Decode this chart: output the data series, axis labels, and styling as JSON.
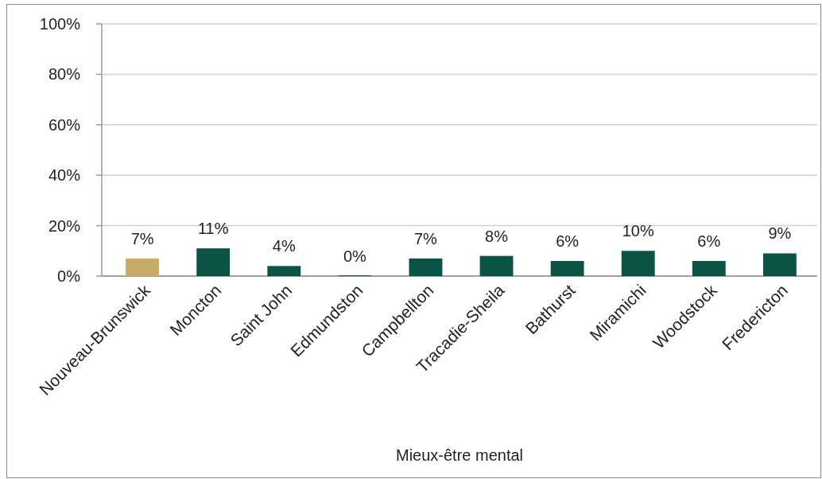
{
  "chart_data": {
    "type": "bar",
    "xlabel": "Mieux-être mental",
    "categories": [
      "Nouveau-Brunswick",
      "Moncton",
      "Saint John",
      "Edmundston",
      "Campbellton",
      "Tracadie-Sheila",
      "Bathurst",
      "Miramichi",
      "Woodstock",
      "Fredericton"
    ],
    "values": [
      7,
      11,
      4,
      0,
      7,
      8,
      6,
      10,
      6,
      9
    ],
    "colors": [
      "#c8ac66",
      "#0b5345",
      "#0b5345",
      "#0b5345",
      "#0b5345",
      "#0b5345",
      "#0b5345",
      "#0b5345",
      "#0b5345",
      "#0b5345"
    ],
    "value_labels": [
      "7%",
      "11%",
      "4%",
      "0%",
      "7%",
      "8%",
      "6%",
      "10%",
      "6%",
      "9%"
    ],
    "ylim": [
      0,
      100
    ],
    "yticks": [
      {
        "value": 0,
        "label": "0%"
      },
      {
        "value": 20,
        "label": "20%"
      },
      {
        "value": 40,
        "label": "40%"
      },
      {
        "value": 60,
        "label": "60%"
      },
      {
        "value": 80,
        "label": "80%"
      },
      {
        "value": 100,
        "label": "100%"
      }
    ],
    "grid": "y"
  }
}
